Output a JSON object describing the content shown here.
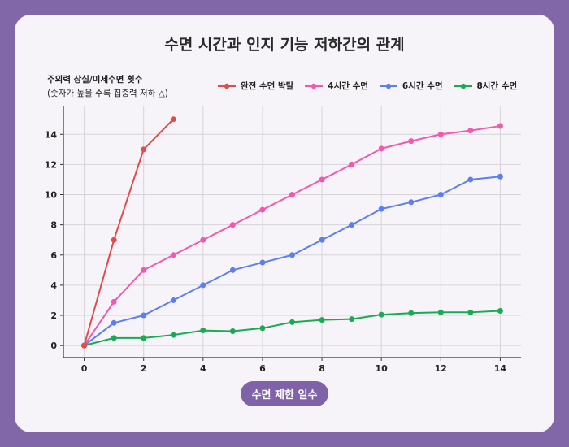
{
  "chart_data": {
    "type": "line",
    "title": "수면 시간과 인지 기능 저하간의 관계",
    "ylabel": "주의력 상실/미세수면 횟수",
    "ylabel_note": "(숫자가 높을 수록 집중력 저하 △)",
    "xlabel": "수면 제한 일수",
    "xlim": [
      -0.7,
      14.7
    ],
    "ylim": [
      -0.8,
      15.9
    ],
    "xticks": [
      0,
      2,
      4,
      6,
      8,
      10,
      12,
      14
    ],
    "yticks": [
      0,
      2,
      4,
      6,
      8,
      10,
      12,
      14
    ],
    "grid": true,
    "legend_position": "top-right",
    "series": [
      {
        "name": "완전 수면 박탈",
        "color": "#e24b4b",
        "x": [
          0,
          1,
          2,
          3
        ],
        "values": [
          0,
          7,
          13,
          15
        ]
      },
      {
        "name": "4시간 수면",
        "color": "#f05aae",
        "x": [
          0,
          1,
          2,
          3,
          4,
          5,
          6,
          7,
          8,
          9,
          10,
          11,
          12,
          13,
          14
        ],
        "values": [
          0,
          2.9,
          5,
          6,
          7,
          8,
          9,
          10,
          11,
          12,
          13.05,
          13.55,
          14,
          14.25,
          14.55
        ]
      },
      {
        "name": "6시간 수면",
        "color": "#5b7ff0",
        "x": [
          0,
          1,
          2,
          3,
          4,
          5,
          6,
          7,
          8,
          9,
          10,
          11,
          12,
          13,
          14
        ],
        "values": [
          0,
          1.5,
          2,
          3,
          4,
          5,
          5.5,
          6,
          7,
          8,
          9.05,
          9.5,
          10,
          11,
          11.2
        ]
      },
      {
        "name": "8시간 수면",
        "color": "#1aab52",
        "x": [
          0,
          1,
          2,
          3,
          4,
          5,
          6,
          7,
          8,
          9,
          10,
          11,
          12,
          13,
          14
        ],
        "values": [
          0,
          0.5,
          0.5,
          0.7,
          1,
          0.95,
          1.15,
          1.55,
          1.7,
          1.75,
          2.05,
          2.15,
          2.2,
          2.2,
          2.3
        ]
      }
    ]
  }
}
